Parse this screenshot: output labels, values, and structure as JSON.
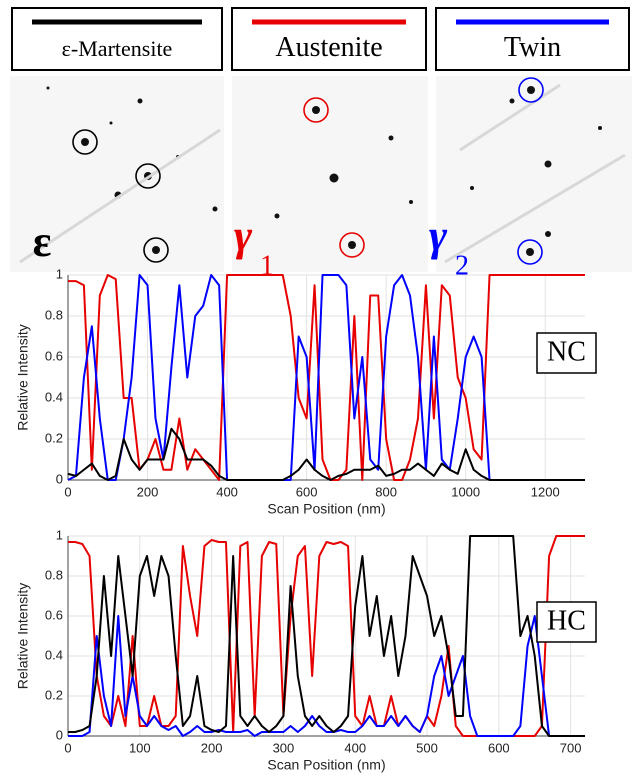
{
  "phases": [
    {
      "name": "ε-Martensite",
      "color": "#000000",
      "symbol": "ε"
    },
    {
      "name": "Austenite",
      "color": "#e60000",
      "symbol": "γ",
      "subscript": "1"
    },
    {
      "name": "Twin",
      "color": "#0000ff",
      "symbol": "γ",
      "subscript": "2"
    }
  ],
  "chart_data": [
    {
      "type": "line",
      "annotation": "NC",
      "ylabel": "Relative Intensity",
      "xlabel": "Scan Position (nm)",
      "xlim": [
        0,
        1300
      ],
      "xticks": [
        0,
        200,
        400,
        600,
        800,
        1000,
        1200
      ],
      "ylim": [
        0,
        1
      ],
      "yticks": [
        0,
        0.2,
        0.4,
        0.6,
        0.8,
        1
      ],
      "grid": true,
      "x": [
        0,
        20,
        40,
        60,
        80,
        100,
        120,
        140,
        160,
        180,
        200,
        220,
        240,
        260,
        280,
        300,
        320,
        340,
        360,
        380,
        400,
        420,
        440,
        460,
        480,
        500,
        520,
        540,
        560,
        580,
        600,
        620,
        640,
        660,
        680,
        700,
        720,
        740,
        760,
        780,
        800,
        820,
        840,
        860,
        880,
        900,
        920,
        940,
        960,
        980,
        1000,
        1020,
        1040,
        1060,
        1080,
        1100,
        1120,
        1140,
        1160,
        1180,
        1200,
        1220,
        1240,
        1260,
        1280,
        1300
      ],
      "series": [
        {
          "color": "#e60000",
          "values": [
            0.97,
            0.97,
            0.95,
            0.05,
            0.9,
            1.0,
            0.98,
            0.4,
            0.4,
            0.05,
            0.1,
            0.2,
            0.05,
            0.05,
            0.3,
            0.05,
            0.15,
            0.1,
            0.05,
            0.0,
            1.0,
            1.0,
            1.0,
            1.0,
            1.0,
            1.0,
            1.0,
            1.0,
            0.8,
            0.4,
            0.3,
            0.95,
            0.1,
            0.0,
            0.0,
            0.05,
            0.8,
            0.0,
            0.9,
            0.9,
            0.2,
            0.0,
            0.0,
            0.1,
            0.3,
            0.95,
            0.3,
            0.95,
            0.9,
            0.5,
            0.4,
            0.15,
            0.1,
            1.0,
            1.0,
            1.0,
            1.0,
            1.0,
            1.0,
            1.0,
            1.0,
            1.0,
            1.0,
            1.0,
            1.0,
            1.0
          ]
        },
        {
          "color": "#0000ff",
          "values": [
            0.0,
            0.02,
            0.5,
            0.75,
            0.3,
            0.0,
            0.0,
            0.2,
            0.5,
            1.0,
            0.95,
            0.3,
            0.1,
            0.55,
            0.95,
            0.5,
            0.8,
            0.85,
            1.0,
            0.95,
            0.0,
            0.0,
            0.0,
            0.0,
            0.0,
            0.0,
            0.0,
            0.0,
            0.0,
            0.7,
            0.6,
            0.05,
            1.0,
            1.0,
            1.0,
            0.95,
            0.3,
            0.6,
            0.1,
            0.05,
            0.7,
            0.95,
            1.0,
            0.9,
            0.6,
            0.05,
            0.7,
            0.1,
            0.05,
            0.3,
            0.6,
            0.7,
            0.6,
            0.0,
            0.0,
            0.0,
            0.0,
            0.0,
            0.0,
            0.0,
            0.0,
            0.0,
            0.0,
            0.0,
            0.0,
            0.0
          ]
        },
        {
          "color": "#000000",
          "values": [
            0.03,
            0.02,
            0.05,
            0.08,
            0.02,
            0.0,
            0.02,
            0.2,
            0.1,
            0.05,
            0.1,
            0.1,
            0.1,
            0.25,
            0.2,
            0.1,
            0.1,
            0.1,
            0.07,
            0.02,
            0.0,
            0.0,
            0.0,
            0.0,
            0.0,
            0.0,
            0.0,
            0.0,
            0.02,
            0.05,
            0.1,
            0.05,
            0.02,
            0.0,
            0.02,
            0.03,
            0.05,
            0.05,
            0.05,
            0.07,
            0.02,
            0.03,
            0.05,
            0.05,
            0.08,
            0.05,
            0.02,
            0.08,
            0.05,
            0.03,
            0.15,
            0.05,
            0.02,
            0.0,
            0.0,
            0.0,
            0.0,
            0.0,
            0.0,
            0.0,
            0.0,
            0.0,
            0.0,
            0.0,
            0.0,
            0.0
          ]
        }
      ]
    },
    {
      "type": "line",
      "annotation": "HC",
      "ylabel": "Relative Intensity",
      "xlabel": "Scan Position (nm)",
      "xlim": [
        0,
        720
      ],
      "xticks": [
        0,
        100,
        200,
        300,
        400,
        500,
        600,
        700
      ],
      "ylim": [
        0,
        1
      ],
      "yticks": [
        0,
        0.2,
        0.4,
        0.6,
        0.8,
        1
      ],
      "grid": true,
      "x": [
        0,
        10,
        20,
        30,
        40,
        50,
        60,
        70,
        80,
        90,
        100,
        110,
        120,
        130,
        140,
        150,
        160,
        170,
        180,
        190,
        200,
        210,
        220,
        230,
        240,
        250,
        260,
        270,
        280,
        290,
        300,
        310,
        320,
        330,
        340,
        350,
        360,
        370,
        380,
        390,
        400,
        410,
        420,
        430,
        440,
        450,
        460,
        470,
        480,
        490,
        500,
        510,
        520,
        530,
        540,
        550,
        560,
        570,
        580,
        590,
        600,
        610,
        620,
        630,
        640,
        650,
        660,
        670,
        680,
        690,
        700,
        710,
        720
      ],
      "series": [
        {
          "color": "#e60000",
          "values": [
            0.97,
            0.97,
            0.96,
            0.9,
            0.3,
            0.1,
            0.05,
            0.2,
            0.05,
            0.5,
            0.05,
            0.05,
            0.2,
            0.05,
            0.05,
            0.1,
            0.95,
            0.7,
            0.5,
            0.95,
            0.98,
            0.97,
            0.97,
            0.02,
            0.95,
            0.97,
            0.1,
            0.9,
            0.97,
            0.96,
            0.1,
            0.6,
            0.9,
            0.95,
            0.3,
            0.9,
            0.97,
            0.96,
            0.97,
            0.95,
            0.1,
            0.05,
            0.2,
            0.05,
            0.05,
            0.2,
            0.05,
            0.1,
            0.05,
            0.02,
            0.1,
            0.05,
            0.2,
            0.45,
            0.05,
            0.0,
            0.0,
            0.0,
            0.0,
            0.0,
            0.0,
            0.0,
            0.0,
            0.0,
            0.0,
            0.0,
            0.05,
            0.9,
            1.0,
            1.0,
            1.0,
            1.0,
            1.0
          ]
        },
        {
          "color": "#0000ff",
          "values": [
            0.0,
            0.0,
            0.0,
            0.02,
            0.5,
            0.2,
            0.05,
            0.6,
            0.1,
            0.3,
            0.1,
            0.05,
            0.1,
            0.05,
            0.03,
            0.05,
            0.0,
            0.02,
            0.05,
            0.02,
            0.02,
            0.03,
            0.02,
            0.02,
            0.02,
            0.03,
            0.0,
            0.02,
            0.02,
            0.02,
            0.02,
            0.05,
            0.02,
            0.05,
            0.1,
            0.05,
            0.02,
            0.02,
            0.03,
            0.02,
            0.02,
            0.05,
            0.1,
            0.05,
            0.05,
            0.1,
            0.05,
            0.1,
            0.05,
            0.02,
            0.1,
            0.3,
            0.4,
            0.2,
            0.3,
            0.4,
            0.1,
            0.0,
            0.0,
            0.0,
            0.0,
            0.0,
            0.0,
            0.05,
            0.45,
            0.6,
            0.3,
            0.0,
            0.0,
            0.0,
            0.0,
            0.0,
            0.0
          ]
        },
        {
          "color": "#000000",
          "values": [
            0.02,
            0.02,
            0.03,
            0.05,
            0.3,
            0.8,
            0.4,
            0.9,
            0.6,
            0.3,
            0.8,
            0.9,
            0.7,
            0.9,
            0.8,
            0.4,
            0.05,
            0.1,
            0.3,
            0.05,
            0.03,
            0.02,
            0.05,
            0.9,
            0.1,
            0.05,
            0.1,
            0.05,
            0.02,
            0.05,
            0.1,
            0.75,
            0.3,
            0.1,
            0.05,
            0.1,
            0.05,
            0.02,
            0.05,
            0.1,
            0.65,
            0.9,
            0.5,
            0.7,
            0.4,
            0.6,
            0.3,
            0.5,
            0.9,
            0.8,
            0.7,
            0.5,
            0.6,
            0.4,
            0.1,
            0.1,
            1.0,
            1.0,
            1.0,
            1.0,
            1.0,
            1.0,
            1.0,
            0.5,
            0.6,
            0.4,
            0.05,
            0.0,
            0.0,
            0.0,
            0.0,
            0.0,
            0.0
          ]
        }
      ]
    }
  ]
}
